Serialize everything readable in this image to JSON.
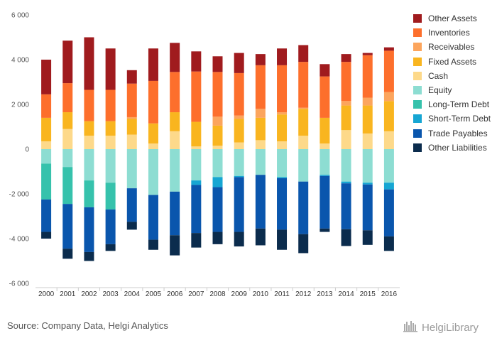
{
  "chart_data": {
    "type": "bar",
    "stacked": true,
    "categories": [
      "2000",
      "2001",
      "2002",
      "2003",
      "2004",
      "2005",
      "2006",
      "2007",
      "2008",
      "2009",
      "2010",
      "2011",
      "2012",
      "2013",
      "2014",
      "2015",
      "2016"
    ],
    "ylim": [
      -6000,
      6000
    ],
    "yticks": [
      6000,
      4000,
      2000,
      0,
      -2000,
      -4000,
      -6000
    ],
    "ytick_labels": [
      "6 000",
      "4 000",
      "2 000",
      "0",
      "-2 000",
      "-4 000",
      "-6 000"
    ],
    "grid": false,
    "legend_position": "right",
    "asset_series": [
      {
        "name": "Cash",
        "color": "#fdd98a",
        "values": [
          350,
          900,
          600,
          600,
          650,
          250,
          800,
          120,
          150,
          300,
          400,
          350,
          600,
          250,
          850,
          700,
          800
        ]
      },
      {
        "name": "Fixed Assets",
        "color": "#f9b51f",
        "values": [
          1050,
          750,
          650,
          650,
          700,
          900,
          850,
          1100,
          900,
          1050,
          1000,
          1200,
          1200,
          1150,
          1100,
          1250,
          1350
        ]
      },
      {
        "name": "Receivables",
        "color": "#fca55d",
        "values": [
          0,
          0,
          0,
          0,
          80,
          0,
          0,
          0,
          400,
          150,
          400,
          100,
          50,
          0,
          200,
          350,
          400
        ]
      },
      {
        "name": "Inventories",
        "color": "#fd6f2c",
        "values": [
          1050,
          1300,
          1400,
          1400,
          1500,
          1900,
          1800,
          2250,
          2000,
          1900,
          1950,
          2100,
          2050,
          1850,
          1750,
          1900,
          1850
        ]
      },
      {
        "name": "Other Assets",
        "color": "#a01b1e",
        "values": [
          1550,
          1900,
          2350,
          1850,
          600,
          1450,
          1300,
          900,
          700,
          900,
          500,
          750,
          750,
          550,
          350,
          100,
          150
        ]
      }
    ],
    "liability_series": [
      {
        "name": "Equity",
        "color": "#8dddd2",
        "values": [
          650,
          800,
          1400,
          1500,
          1750,
          2050,
          1900,
          1400,
          1250,
          1200,
          1150,
          1250,
          1450,
          1150,
          1450,
          1500,
          1500
        ]
      },
      {
        "name": "Long-Term Debt",
        "color": "#36c2ac",
        "values": [
          1600,
          1650,
          1200,
          1200,
          0,
          0,
          0,
          0,
          0,
          0,
          0,
          0,
          0,
          0,
          0,
          0,
          0
        ]
      },
      {
        "name": "Short-Term Debt",
        "color": "#16a6d3",
        "values": [
          0,
          0,
          0,
          0,
          0,
          0,
          0,
          200,
          450,
          50,
          0,
          50,
          0,
          50,
          80,
          80,
          300
        ]
      },
      {
        "name": "Trade Payables",
        "color": "#0a56ad",
        "values": [
          1450,
          2000,
          2000,
          1550,
          1500,
          2000,
          1950,
          2150,
          2000,
          2450,
          2400,
          2300,
          2350,
          2350,
          2050,
          2050,
          2100
        ]
      },
      {
        "name": "Other Liabilities",
        "color": "#0b2c4d",
        "values": [
          300,
          450,
          400,
          300,
          350,
          450,
          900,
          650,
          550,
          650,
          750,
          900,
          850,
          150,
          750,
          650,
          650
        ]
      }
    ]
  },
  "legend": [
    {
      "label": "Other Assets",
      "color": "#a01b1e"
    },
    {
      "label": "Inventories",
      "color": "#fd6f2c"
    },
    {
      "label": "Receivables",
      "color": "#fca55d"
    },
    {
      "label": "Fixed Assets",
      "color": "#f9b51f"
    },
    {
      "label": "Cash",
      "color": "#fdd98a"
    },
    {
      "label": "Equity",
      "color": "#8dddd2"
    },
    {
      "label": "Long-Term Debt",
      "color": "#36c2ac"
    },
    {
      "label": "Short-Term Debt",
      "color": "#16a6d3"
    },
    {
      "label": "Trade Payables",
      "color": "#0a56ad"
    },
    {
      "label": "Other Liabilities",
      "color": "#0b2c4d"
    }
  ],
  "footer": {
    "source": "Source: Company Data, Helgi Analytics",
    "brand": "HelgiLibrary"
  }
}
